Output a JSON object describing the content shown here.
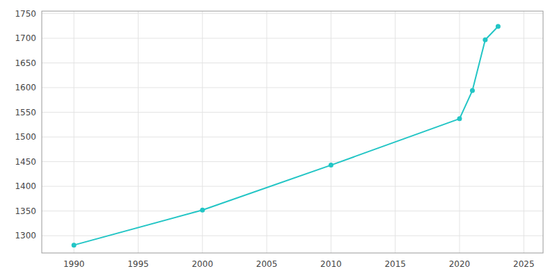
{
  "chart_data": {
    "type": "line",
    "x": [
      1990,
      2000,
      2010,
      2020,
      2021,
      2022,
      2023
    ],
    "values": [
      1281,
      1352,
      1443,
      1537,
      1594,
      1697,
      1724
    ],
    "color": "#22c5c5",
    "marker": "circle",
    "xlim": [
      1987.5,
      2026.5
    ],
    "ylim": [
      1265,
      1755
    ],
    "xticks": [
      1990,
      1995,
      2000,
      2005,
      2010,
      2015,
      2020,
      2025
    ],
    "yticks": [
      1300,
      1350,
      1400,
      1450,
      1500,
      1550,
      1600,
      1650,
      1700,
      1750
    ],
    "grid": true
  }
}
